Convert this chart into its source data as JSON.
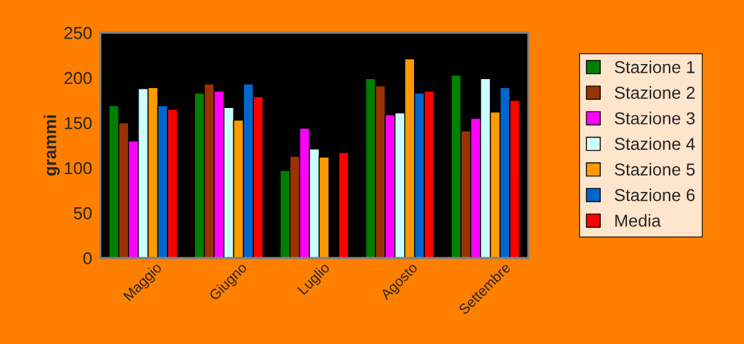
{
  "chart_data": {
    "type": "bar",
    "ylabel": "grammi",
    "categories": [
      "Maggio",
      "Giugno",
      "Luglio",
      "Agosto",
      "Settembre"
    ],
    "series": [
      {
        "name": "Stazione 1",
        "color": "#008000",
        "values": [
          169,
          183,
          97,
          199,
          203
        ]
      },
      {
        "name": "Stazione 2",
        "color": "#993300",
        "values": [
          150,
          193,
          113,
          191,
          141
        ]
      },
      {
        "name": "Stazione 3",
        "color": "#ff00ff",
        "values": [
          130,
          185,
          144,
          159,
          155
        ]
      },
      {
        "name": "Stazione 4",
        "color": "#ccffff",
        "values": [
          188,
          167,
          121,
          161,
          199
        ]
      },
      {
        "name": "Stazione 5",
        "color": "#ff9900",
        "values": [
          189,
          153,
          112,
          221,
          162
        ]
      },
      {
        "name": "Stazione 6",
        "color": "#0066cc",
        "values": [
          169,
          193,
          null,
          183,
          189
        ]
      },
      {
        "name": "Media",
        "color": "#ff0000",
        "values": [
          165,
          179,
          117,
          185,
          175
        ]
      }
    ],
    "ylim": [
      0,
      250
    ],
    "yticks": [
      0,
      50,
      100,
      150,
      200,
      250
    ],
    "grid": false,
    "legend": "right"
  }
}
